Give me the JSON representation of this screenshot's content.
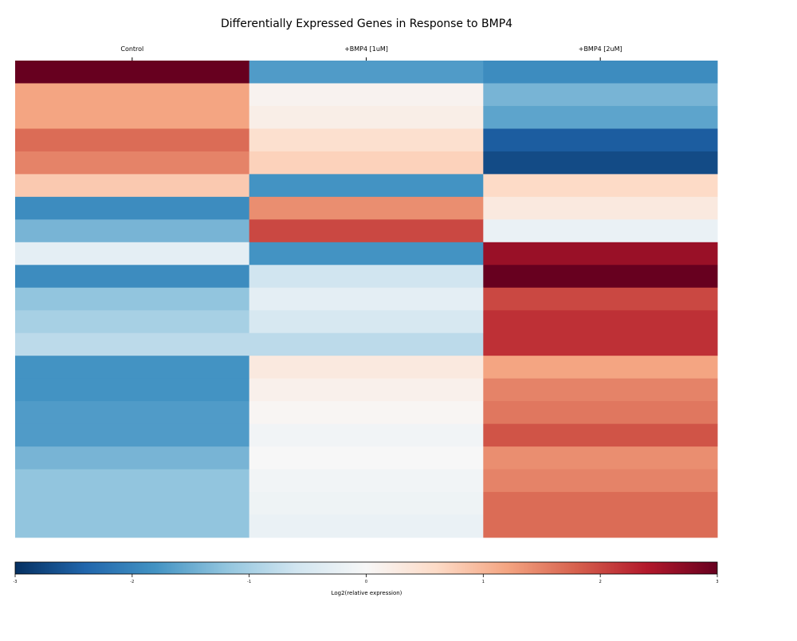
{
  "chart_data": {
    "type": "heatmap",
    "title": "Differentially Expressed Genes in Response to BMP4",
    "xlabel": "",
    "ylabel": "",
    "columns": [
      "Control",
      "+BMP4 [1uM]",
      "+BMP4 [2uM]"
    ],
    "values": [
      [
        3.0,
        -1.7,
        -1.9
      ],
      [
        1.2,
        0.1,
        -1.4
      ],
      [
        1.2,
        0.2,
        -1.6
      ],
      [
        1.7,
        0.5,
        -2.5
      ],
      [
        1.5,
        0.7,
        -2.7
      ],
      [
        0.8,
        -1.8,
        0.6
      ],
      [
        -1.9,
        1.4,
        0.3
      ],
      [
        -1.4,
        2.0,
        -0.2
      ],
      [
        -0.3,
        -1.8,
        2.6
      ],
      [
        -1.9,
        -0.6,
        3.0
      ],
      [
        -1.2,
        -0.3,
        2.0
      ],
      [
        -1.0,
        -0.5,
        2.2
      ],
      [
        -0.8,
        -0.8,
        2.2
      ],
      [
        -1.8,
        0.3,
        1.2
      ],
      [
        -1.8,
        0.15,
        1.5
      ],
      [
        -1.7,
        0.05,
        1.6
      ],
      [
        -1.7,
        -0.1,
        1.9
      ],
      [
        -1.4,
        0.0,
        1.4
      ],
      [
        -1.2,
        -0.1,
        1.5
      ],
      [
        -1.2,
        -0.15,
        1.7
      ],
      [
        -1.2,
        -0.2,
        1.7
      ]
    ],
    "colorbar": {
      "label": "Log2(relative expression)",
      "vmin": -3,
      "vmax": 3,
      "ticks": [
        "-3",
        "-2",
        "-1",
        "0",
        "1",
        "2",
        "3"
      ],
      "colormap": "RdBu_r"
    },
    "colormap_stops": [
      "#053061",
      "#2166ac",
      "#4393c3",
      "#92c5de",
      "#d1e5f0",
      "#f7f7f7",
      "#fddbc7",
      "#f4a582",
      "#d6604d",
      "#b2182b",
      "#67001f"
    ]
  }
}
